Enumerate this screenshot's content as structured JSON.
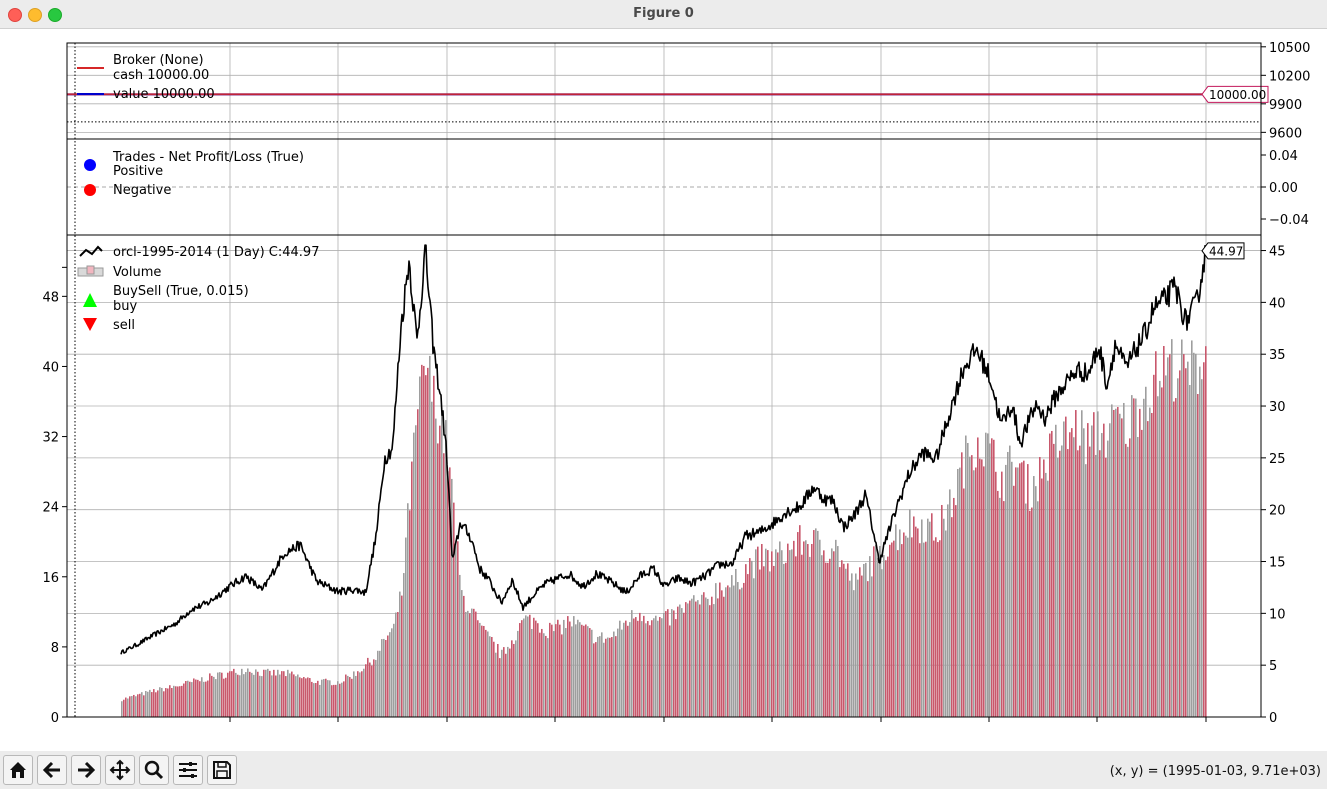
{
  "window": {
    "title": "Figure 0"
  },
  "toolbar": {
    "buttons": [
      {
        "name": "home-icon"
      },
      {
        "name": "back-arrow-icon"
      },
      {
        "name": "forward-arrow-icon"
      },
      {
        "name": "pan-icon"
      },
      {
        "name": "zoom-icon"
      },
      {
        "name": "configure-subplots-icon"
      },
      {
        "name": "save-icon"
      }
    ],
    "coords": "(x, y) = (1995-01-03, 9.71e+03)"
  },
  "chart_data": [
    {
      "type": "line",
      "panel": "broker",
      "legend": [
        "Broker (None)",
        "cash 10000.00",
        "value 10000.00"
      ],
      "y_ticks": [
        "10500",
        "10200",
        "9900",
        "9600"
      ],
      "ylim": [
        9530,
        10540
      ],
      "series": [
        {
          "name": "cash 10000.00",
          "color": "#d62728",
          "value": 10000.0
        },
        {
          "name": "value 10000.00",
          "color": "#0000cc",
          "value": 10000.0
        }
      ],
      "last_value_label": "10000.00",
      "hline": 9710
    },
    {
      "type": "scatter",
      "panel": "trades",
      "legend": [
        "Trades - Net Profit/Loss (True)",
        "Positive",
        "Negative"
      ],
      "legend_colors": [
        "#0000ff",
        "#ff0000"
      ],
      "y_ticks": [
        "0.04",
        "0.00",
        "−0.04"
      ],
      "ylim": [
        -0.06,
        0.06
      ],
      "points": []
    },
    {
      "type": "line",
      "panel": "price",
      "legend": [
        "orcl-1995-2014 (1 Day) C:44.97",
        "Volume",
        "BuySell (True, 0.015)",
        "buy",
        "sell"
      ],
      "y_ticks": [
        "45",
        "40",
        "35",
        "30",
        "25",
        "20",
        "15",
        "10",
        "5",
        "0"
      ],
      "volume_ticks": [
        "48",
        "40",
        "32",
        "24",
        "16",
        "8",
        "0"
      ],
      "ylim": [
        0,
        46.5
      ],
      "volume_ylim": [
        0,
        55
      ],
      "last_value_label": "44.97",
      "x": [
        1995.0,
        1995.3,
        1995.6,
        1996.0,
        1996.3,
        1996.6,
        1997.0,
        1997.3,
        1997.6,
        1998.0,
        1998.3,
        1998.6,
        1999.0,
        1999.3,
        1999.5,
        1999.7,
        1999.85,
        2000.0,
        2000.15,
        2000.3,
        2000.45,
        2000.6,
        2000.75,
        2000.9,
        2001.0,
        2001.1,
        2001.25,
        2001.45,
        2001.6,
        2001.75,
        2002.0,
        2002.2,
        2002.4,
        2002.6,
        2002.8,
        2003.0,
        2003.25,
        2003.5,
        2003.75,
        2004.0,
        2004.3,
        2004.55,
        2004.8,
        2005.0,
        2005.25,
        2005.5,
        2005.75,
        2006.0,
        2006.25,
        2006.5,
        2006.75,
        2007.0,
        2007.25,
        2007.5,
        2007.75,
        2007.95,
        2008.1,
        2008.3,
        2008.5,
        2008.7,
        2008.85,
        2008.95,
        2009.1,
        2009.3,
        2009.5,
        2009.75,
        2010.0,
        2010.25,
        2010.5,
        2010.75,
        2011.0,
        2011.2,
        2011.4,
        2011.55,
        2011.7,
        2011.85,
        2012.0,
        2012.2,
        2012.4,
        2012.6,
        2012.8,
        2013.0,
        2013.15,
        2013.3,
        2013.5,
        2013.65,
        2013.85,
        2014.0,
        2014.2,
        2014.4,
        2014.6,
        2014.8,
        2014.97
      ],
      "close": [
        6.2,
        7.0,
        7.9,
        9.0,
        10.4,
        11.0,
        12.6,
        13.6,
        12.2,
        15.8,
        16.6,
        13.1,
        12.1,
        12.3,
        12.0,
        17.6,
        24.9,
        26.0,
        37.4,
        44.1,
        36.2,
        45.1,
        35.6,
        30.2,
        25.0,
        14.9,
        18.8,
        17.2,
        14.3,
        13.4,
        11.0,
        13.2,
        10.6,
        11.8,
        12.8,
        13.3,
        13.8,
        12.6,
        13.8,
        13.1,
        12.0,
        13.6,
        14.3,
        12.6,
        13.4,
        12.9,
        13.6,
        14.7,
        14.8,
        17.5,
        17.8,
        18.7,
        19.8,
        20.3,
        22.2,
        21.0,
        20.9,
        18.3,
        19.5,
        21.4,
        17.9,
        15.0,
        17.4,
        20.6,
        23.4,
        25.5,
        24.9,
        29.3,
        33.6,
        35.5,
        32.7,
        28.2,
        30.1,
        26.4,
        28.4,
        30.2,
        28.8,
        30.9,
        32.3,
        33.5,
        33.1,
        35.7,
        32.0,
        36.0,
        33.6,
        35.2,
        37.0,
        39.4,
        40.2,
        41.5,
        38.1,
        40.0,
        44.97
      ],
      "volume": [
        2,
        2.5,
        3,
        3.5,
        4,
        4.5,
        5,
        5.5,
        5,
        5,
        4.5,
        4,
        4,
        5,
        6,
        7,
        9,
        10,
        14,
        25,
        35,
        40,
        36,
        33,
        30,
        24,
        14,
        12,
        10,
        9,
        7,
        9,
        11,
        11,
        10,
        10,
        11,
        10,
        9,
        9,
        11,
        12,
        11,
        11,
        12,
        13,
        13,
        15,
        15,
        17,
        18,
        18,
        19,
        20,
        20,
        19,
        20,
        17,
        15,
        17,
        18,
        18,
        20,
        21,
        22,
        22,
        21,
        24,
        29,
        32,
        30,
        27,
        29,
        28,
        26,
        27,
        29,
        31,
        32,
        33,
        31,
        33,
        32,
        34,
        33,
        35,
        37,
        38,
        40,
        40,
        39,
        40,
        43
      ],
      "volume_colors": [
        "#c8586c",
        "#9e9e9e"
      ]
    }
  ],
  "x_tick_labels": []
}
